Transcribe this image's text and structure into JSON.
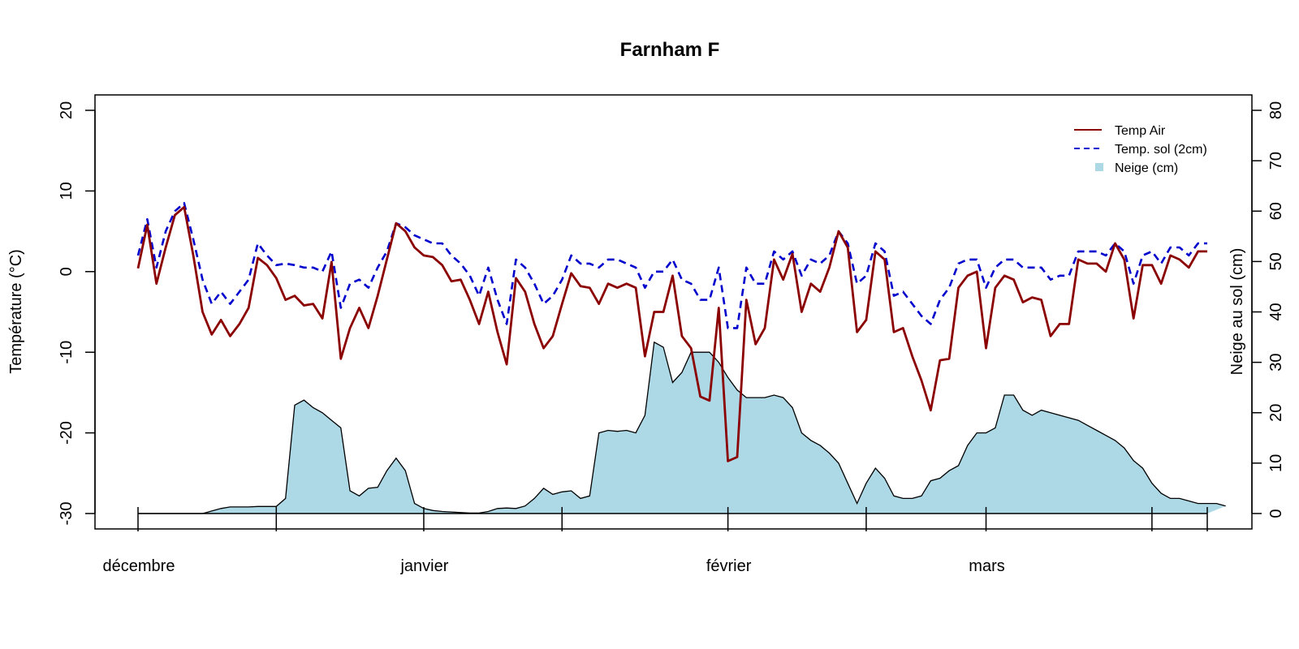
{
  "chart_data": {
    "type": "line",
    "title": "Farnham F",
    "xlabel": "",
    "ylabel": "Température (°C)",
    "y2label": "Neige au sol (cm)",
    "ylim": [
      -30,
      20
    ],
    "y2lim": [
      0,
      80
    ],
    "yticks": [
      -30,
      -20,
      -10,
      0,
      10,
      20
    ],
    "y2ticks": [
      0,
      10,
      20,
      30,
      40,
      50,
      60,
      70,
      80
    ],
    "xtick_labels": [
      {
        "label": "décembre",
        "day": 0
      },
      {
        "label": "janvier",
        "day": 31
      },
      {
        "label": "février",
        "day": 64
      },
      {
        "label": "mars",
        "day": 92
      }
    ],
    "legend_position": "top-right",
    "legend": [
      "Temp Air",
      "Temp. sol (2cm)",
      "Neige (cm)"
    ],
    "colors": {
      "air": "#8b0000",
      "sol": "#0000cd",
      "neige": "#add8e6",
      "neige_outline": "#000000"
    },
    "series": [
      {
        "name": "Temp Air",
        "values": [
          0.4,
          5.8,
          -1.5,
          3.0,
          7.0,
          8.0,
          2.0,
          -5.0,
          -7.8,
          -6.0,
          -8.0,
          -6.5,
          -4.5,
          1.7,
          0.8,
          -0.8,
          -3.5,
          -3.0,
          -4.2,
          -4.0,
          -5.8,
          1.2,
          -10.8,
          -7.0,
          -4.5,
          -7.0,
          -3.0,
          1.5,
          6.0,
          5.0,
          3.0,
          2.0,
          1.8,
          0.8,
          -1.2,
          -1.0,
          -3.5,
          -6.5,
          -2.5,
          -7.5,
          -11.5,
          -0.8,
          -2.5,
          -6.5,
          -9.5,
          -8.0,
          -4.0,
          -0.2,
          -1.8,
          -2.0,
          -4.0,
          -1.5,
          -2.0,
          -1.5,
          -2.0,
          -10.5,
          -5.0,
          -5.0,
          -0.5,
          -8.0,
          -9.5,
          -15.5,
          -16.0,
          -4.5,
          -23.5,
          -23.0,
          -3.5,
          -9.0,
          -7.0,
          1.5,
          -1.0,
          2.2,
          -5.0,
          -1.5,
          -2.5,
          0.5,
          5.0,
          3.0,
          -7.5,
          -6.0,
          2.5,
          1.5,
          -7.5,
          -7.0,
          -10.5,
          -13.5,
          -17.2,
          -11.0,
          -10.8,
          -2.0,
          -0.5,
          0.0,
          -9.5,
          -2.0,
          -0.5,
          -1.0,
          -3.8,
          -3.2,
          -3.5,
          -8.0,
          -6.5,
          -6.5,
          1.5,
          1.0,
          1.0,
          0.0,
          3.5,
          1.5,
          -5.8,
          0.8,
          0.8,
          -1.5,
          2.0,
          1.5,
          0.5,
          2.5,
          2.5
        ]
      },
      {
        "name": "Temp. sol (2cm)",
        "values": [
          2.0,
          6.5,
          0.5,
          5.0,
          7.5,
          8.5,
          4.0,
          -1.0,
          -4.0,
          -2.5,
          -4.0,
          -2.5,
          -1.0,
          3.5,
          2.0,
          0.8,
          1.0,
          0.8,
          0.5,
          0.5,
          0.0,
          2.5,
          -4.5,
          -1.5,
          -1.0,
          -2.0,
          0.5,
          2.5,
          6.0,
          5.5,
          4.5,
          4.0,
          3.5,
          3.5,
          2.0,
          1.0,
          -0.5,
          -3.0,
          0.5,
          -3.5,
          -6.5,
          1.5,
          0.5,
          -1.5,
          -4.0,
          -3.0,
          -1.0,
          2.0,
          1.0,
          1.0,
          0.5,
          1.5,
          1.5,
          1.0,
          0.5,
          -2.0,
          0.0,
          0.0,
          1.5,
          -1.0,
          -1.5,
          -3.5,
          -3.5,
          0.5,
          -7.0,
          -7.0,
          0.5,
          -1.5,
          -1.5,
          2.5,
          1.5,
          2.5,
          -0.5,
          1.5,
          1.0,
          2.0,
          5.0,
          3.5,
          -1.5,
          -0.5,
          3.5,
          2.5,
          -3.0,
          -2.5,
          -4.0,
          -5.5,
          -6.5,
          -3.5,
          -2.0,
          1.0,
          1.5,
          1.5,
          -2.0,
          0.5,
          1.5,
          1.5,
          0.5,
          0.5,
          0.5,
          -1.0,
          -0.5,
          -0.5,
          2.5,
          2.5,
          2.5,
          2.0,
          3.5,
          2.5,
          -1.5,
          2.0,
          2.5,
          1.0,
          3.0,
          3.0,
          2.0,
          3.5,
          3.5
        ]
      },
      {
        "name": "Neige (cm)",
        "axis": "right",
        "type": "area",
        "values": [
          0,
          0,
          0,
          0,
          0,
          0,
          0,
          0,
          0.5,
          1.0,
          1.3,
          1.3,
          1.3,
          1.4,
          1.4,
          1.4,
          3.0,
          21.5,
          22.5,
          21.0,
          20.0,
          18.5,
          17.0,
          4.5,
          3.5,
          5.0,
          5.2,
          8.5,
          11.0,
          8.5,
          2.0,
          1.0,
          0.6,
          0.4,
          0.3,
          0.2,
          0.1,
          0.1,
          0.4,
          1.0,
          1.1,
          1.0,
          1.5,
          3.0,
          5.0,
          3.8,
          4.3,
          4.5,
          3.0,
          3.5,
          16.0,
          16.5,
          16.3,
          16.5,
          16.0,
          19.5,
          34.0,
          33.0,
          26.0,
          28.0,
          32.0,
          32.0,
          32.0,
          30.0,
          27.0,
          24.5,
          23.0,
          23.0,
          23.0,
          23.5,
          23.0,
          21.0,
          16.0,
          14.5,
          13.5,
          12.0,
          10.0,
          6.0,
          2.0,
          6.0,
          9.0,
          7.0,
          3.5,
          3.0,
          3.0,
          3.5,
          6.5,
          7.0,
          8.5,
          9.5,
          13.5,
          16.0,
          16.0,
          17.0,
          23.5,
          23.5,
          20.5,
          19.5,
          20.5,
          20.0,
          19.5,
          19.0,
          18.5,
          17.5,
          16.5,
          15.5,
          14.5,
          13.0,
          10.5,
          9.0,
          6.0,
          4.0,
          3.0,
          3.0,
          2.5,
          2.0,
          2.0,
          2.0,
          1.5
        ]
      }
    ]
  }
}
